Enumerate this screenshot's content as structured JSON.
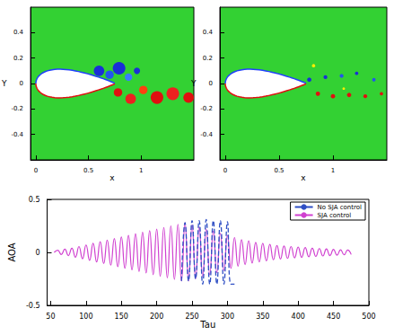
{
  "chart_data": [
    {
      "type": "contour",
      "xlabel": "x",
      "ylabel": "Y",
      "xlim": [
        -0.05,
        1.5
      ],
      "ylim": [
        -0.6,
        0.6
      ],
      "xticks": [
        0,
        0.5,
        1
      ],
      "yticks": [
        -0.4,
        -0.2,
        0,
        0.2,
        0.4
      ],
      "color": "#33d133"
    },
    {
      "type": "contour",
      "xlabel": "x",
      "ylabel": "Y",
      "xlim": [
        -0.05,
        1.5
      ],
      "ylim": [
        -0.6,
        0.6
      ],
      "xticks": [
        0,
        0.5,
        1
      ],
      "yticks": [
        -0.4,
        -0.2,
        0,
        0.2,
        0.4
      ],
      "color": "#33d133"
    },
    {
      "type": "line",
      "xlabel": "Tau",
      "ylabel": "AOA",
      "xlim": [
        45,
        500
      ],
      "ylim": [
        -0.5,
        0.5
      ],
      "xticks": [
        50,
        100,
        150,
        200,
        250,
        300,
        350,
        400,
        450,
        500
      ],
      "yticks": [
        -0.5,
        0,
        0.5
      ],
      "legend": "upper right",
      "series": [
        {
          "name": "No SJA control",
          "color": "#2f4fc4",
          "line_style": "dashed",
          "x": [
            235,
            240,
            245,
            250,
            255,
            260,
            265,
            270,
            275,
            280,
            285,
            290,
            295,
            300,
            305,
            310
          ],
          "values": [
            -0.27,
            0.28,
            -0.27,
            0.3,
            -0.25,
            0.3,
            -0.3,
            0.31,
            -0.3,
            0.3,
            -0.3,
            0.3,
            -0.3,
            0.29,
            -0.3,
            -0.3
          ]
        },
        {
          "name": "SJA control",
          "color": "#d040d0",
          "line_style": "solid",
          "x": [
            55,
            60,
            65,
            70,
            75,
            80,
            85,
            90,
            95,
            100,
            105,
            110,
            115,
            120,
            125,
            130,
            135,
            140,
            145,
            150,
            155,
            160,
            165,
            170,
            175,
            180,
            185,
            190,
            195,
            200,
            205,
            210,
            215,
            220,
            225,
            230,
            235,
            240,
            245,
            250,
            255,
            260,
            265,
            270,
            275,
            280,
            285,
            290,
            295,
            300,
            305,
            310,
            315,
            320,
            325,
            330,
            335,
            340,
            345,
            350,
            355,
            360,
            365,
            370,
            375,
            380,
            385,
            390,
            395,
            400,
            405,
            410,
            415,
            420,
            425,
            430,
            435,
            440,
            445,
            450,
            455,
            460,
            465,
            470,
            475
          ],
          "values": [
            0,
            0.02,
            -0.02,
            0.03,
            -0.03,
            0.04,
            -0.045,
            0.055,
            -0.06,
            0.07,
            -0.075,
            0.085,
            -0.09,
            0.1,
            -0.105,
            0.115,
            -0.12,
            0.13,
            -0.135,
            0.145,
            -0.15,
            0.16,
            -0.165,
            0.175,
            -0.18,
            0.19,
            -0.195,
            0.205,
            -0.21,
            0.22,
            -0.225,
            0.235,
            -0.24,
            0.25,
            -0.255,
            0.265,
            -0.27,
            0.28,
            -0.27,
            0.26,
            -0.25,
            0.24,
            -0.23,
            0.22,
            -0.21,
            0.2,
            -0.19,
            0.18,
            -0.17,
            0.16,
            -0.15,
            0.14,
            -0.13,
            0.12,
            -0.115,
            0.11,
            -0.1,
            0.095,
            -0.09,
            0.085,
            -0.08,
            0.075,
            -0.07,
            0.065,
            -0.062,
            0.06,
            -0.057,
            0.055,
            -0.052,
            0.05,
            -0.047,
            0.045,
            -0.042,
            0.04,
            -0.038,
            0.036,
            -0.034,
            0.032,
            -0.03,
            0.028,
            -0.026,
            0.025,
            -0.023,
            0.022,
            -0.02
          ]
        }
      ]
    }
  ]
}
